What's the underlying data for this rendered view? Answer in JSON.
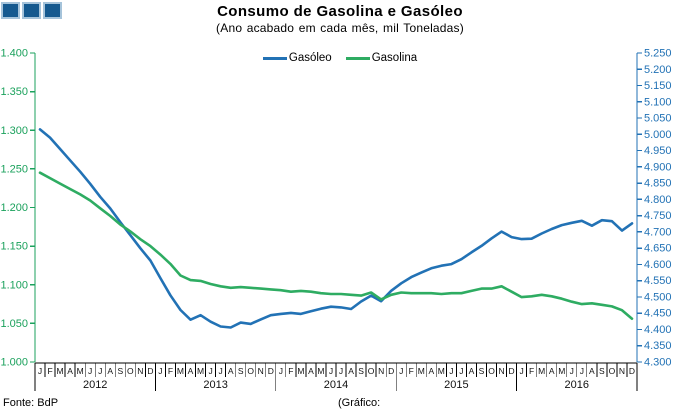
{
  "header": {
    "title": "Consumo de Gasolina e Gasóleo",
    "subtitle": "(Ano acabado em cada mês,  mil Toneladas)"
  },
  "logo": {
    "fill": "#15598F",
    "border": "#A5C3DA"
  },
  "footer": {
    "source": "Fonte: BdP",
    "credit": "(Gráfico:"
  },
  "chart_data": {
    "type": "line",
    "title": "Consumo de Gasolina e Gasóleo",
    "subtitle": "(Ano acabado em cada mês, mil Toneladas)",
    "legend_position": "top",
    "grid": false,
    "month_letters": [
      "J",
      "F",
      "M",
      "A",
      "M",
      "J",
      "J",
      "A",
      "S",
      "O",
      "N",
      "D"
    ],
    "years": [
      "2012",
      "2013",
      "2014",
      "2015",
      "2016"
    ],
    "axes": {
      "left": {
        "color": "#1BA15C",
        "min": 1.0,
        "max": 1.4,
        "tick_labels": [
          "1.400",
          "1.350",
          "1.300",
          "1.250",
          "1.200",
          "1.150",
          "1.100",
          "1.050",
          "1.000"
        ]
      },
      "right": {
        "color": "#2272B5",
        "min": 4.3,
        "max": 5.25,
        "tick_labels": [
          "5.250",
          "5.200",
          "5.150",
          "5.100",
          "5.050",
          "5.000",
          "4.950",
          "4.900",
          "4.850",
          "4.800",
          "4.750",
          "4.700",
          "4.650",
          "4.600",
          "4.550",
          "4.500",
          "4.450",
          "4.400",
          "4.350",
          "4.300"
        ]
      },
      "x_label_color": "#111111"
    },
    "series": [
      {
        "name": "Gasóleo",
        "axis": "right",
        "color": "#2272B5",
        "values": [
          5.015,
          4.99,
          4.955,
          4.92,
          4.885,
          4.848,
          4.808,
          4.772,
          4.73,
          4.69,
          4.65,
          4.612,
          4.558,
          4.505,
          4.46,
          4.43,
          4.444,
          4.424,
          4.409,
          4.406,
          4.421,
          4.417,
          4.431,
          4.444,
          4.448,
          4.451,
          4.448,
          4.456,
          4.464,
          4.47,
          4.468,
          4.463,
          4.486,
          4.504,
          4.487,
          4.519,
          4.542,
          4.561,
          4.575,
          4.588,
          4.596,
          4.601,
          4.616,
          4.637,
          4.657,
          4.68,
          4.701,
          4.684,
          4.678,
          4.679,
          4.695,
          4.709,
          4.721,
          4.728,
          4.734,
          4.719,
          4.736,
          4.733,
          4.704,
          4.726
        ]
      },
      {
        "name": "Gasolina",
        "axis": "left",
        "color": "#2EAC62",
        "values": [
          1.245,
          1.238,
          1.231,
          1.224,
          1.217,
          1.209,
          1.199,
          1.189,
          1.178,
          1.169,
          1.159,
          1.15,
          1.139,
          1.127,
          1.112,
          1.106,
          1.105,
          1.101,
          1.098,
          1.096,
          1.097,
          1.096,
          1.095,
          1.094,
          1.093,
          1.091,
          1.092,
          1.091,
          1.089,
          1.088,
          1.088,
          1.087,
          1.086,
          1.09,
          1.081,
          1.087,
          1.09,
          1.089,
          1.089,
          1.089,
          1.088,
          1.089,
          1.089,
          1.092,
          1.095,
          1.095,
          1.098,
          1.091,
          1.084,
          1.085,
          1.087,
          1.085,
          1.082,
          1.078,
          1.075,
          1.076,
          1.074,
          1.072,
          1.067,
          1.056
        ]
      }
    ]
  }
}
